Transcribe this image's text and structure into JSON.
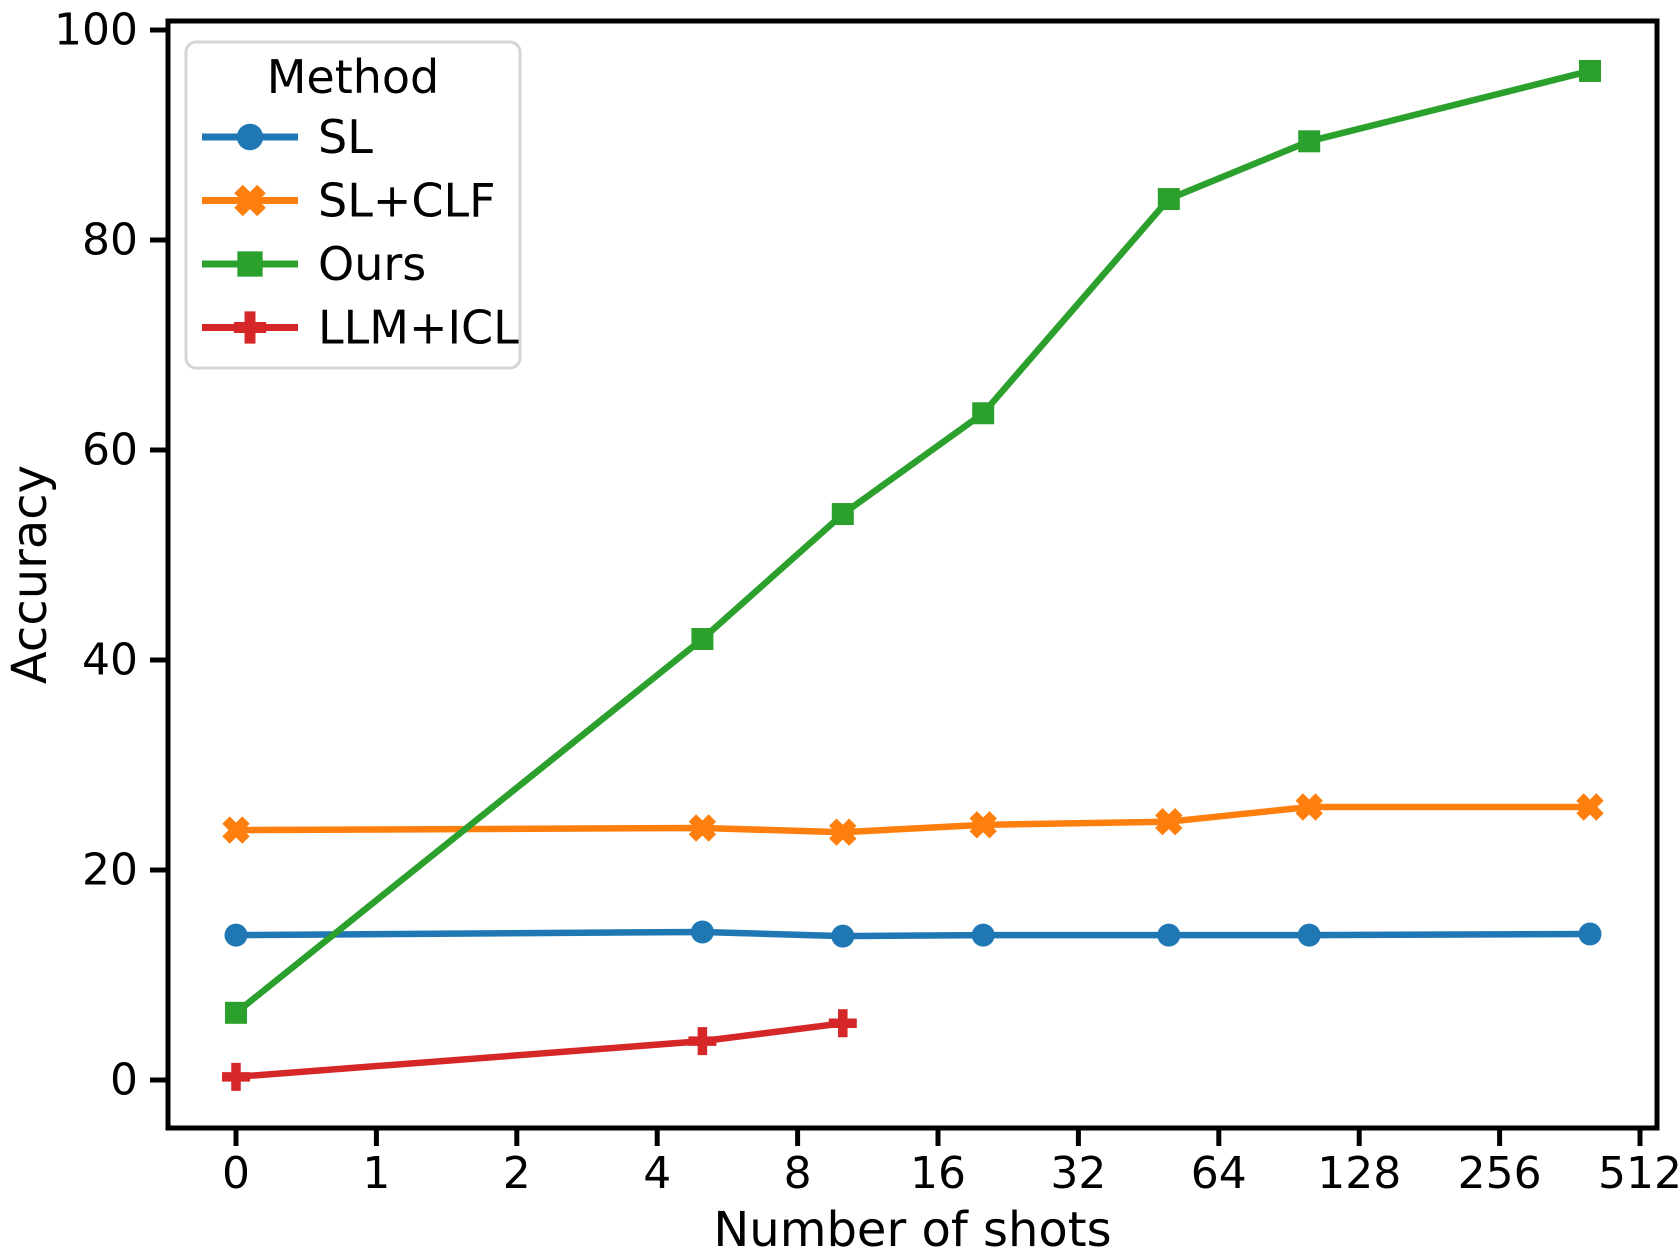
{
  "chart_data": {
    "type": "line",
    "title": "",
    "xlabel": "Number of shots",
    "ylabel": "Accuracy",
    "x_scale": "log2_with_zero",
    "x_tick_values": [
      0,
      1,
      2,
      4,
      8,
      16,
      32,
      64,
      128,
      256,
      512
    ],
    "x_tick_labels": [
      "0",
      "1",
      "2",
      "4",
      "8",
      "16",
      "32",
      "64",
      "128",
      "256",
      "512"
    ],
    "y_tick_values": [
      0,
      20,
      40,
      60,
      80,
      100
    ],
    "y_tick_labels": [
      "0",
      "20",
      "40",
      "60",
      "80",
      "100"
    ],
    "ylim": [
      -4.6,
      100.9
    ],
    "grid": false,
    "background_color": "#ffffff",
    "axis_color": "#000000",
    "legend": {
      "title": "Method",
      "position": "upper-left",
      "border_color": "#d5d5d5"
    },
    "series": [
      {
        "name": "SL",
        "color": "#1f77b4",
        "marker": "circle",
        "x": [
          0,
          5,
          10,
          20,
          50,
          100,
          400
        ],
        "y": [
          13.8,
          14.1,
          13.7,
          13.8,
          13.8,
          13.8,
          13.9
        ]
      },
      {
        "name": "SL+CLF",
        "color": "#ff7f0e",
        "marker": "x",
        "x": [
          0,
          5,
          10,
          20,
          50,
          100,
          400
        ],
        "y": [
          23.8,
          24.0,
          23.6,
          24.3,
          24.6,
          26.0,
          26.0
        ]
      },
      {
        "name": "Ours",
        "color": "#2ca02c",
        "marker": "square",
        "x": [
          0,
          5,
          10,
          20,
          50,
          100,
          400
        ],
        "y": [
          6.4,
          42.0,
          53.9,
          63.5,
          83.9,
          89.4,
          96.1
        ]
      },
      {
        "name": "LLM+ICL",
        "color": "#d62728",
        "marker": "plus",
        "x": [
          0,
          5,
          10
        ],
        "y": [
          0.3,
          3.7,
          5.4
        ]
      }
    ]
  }
}
